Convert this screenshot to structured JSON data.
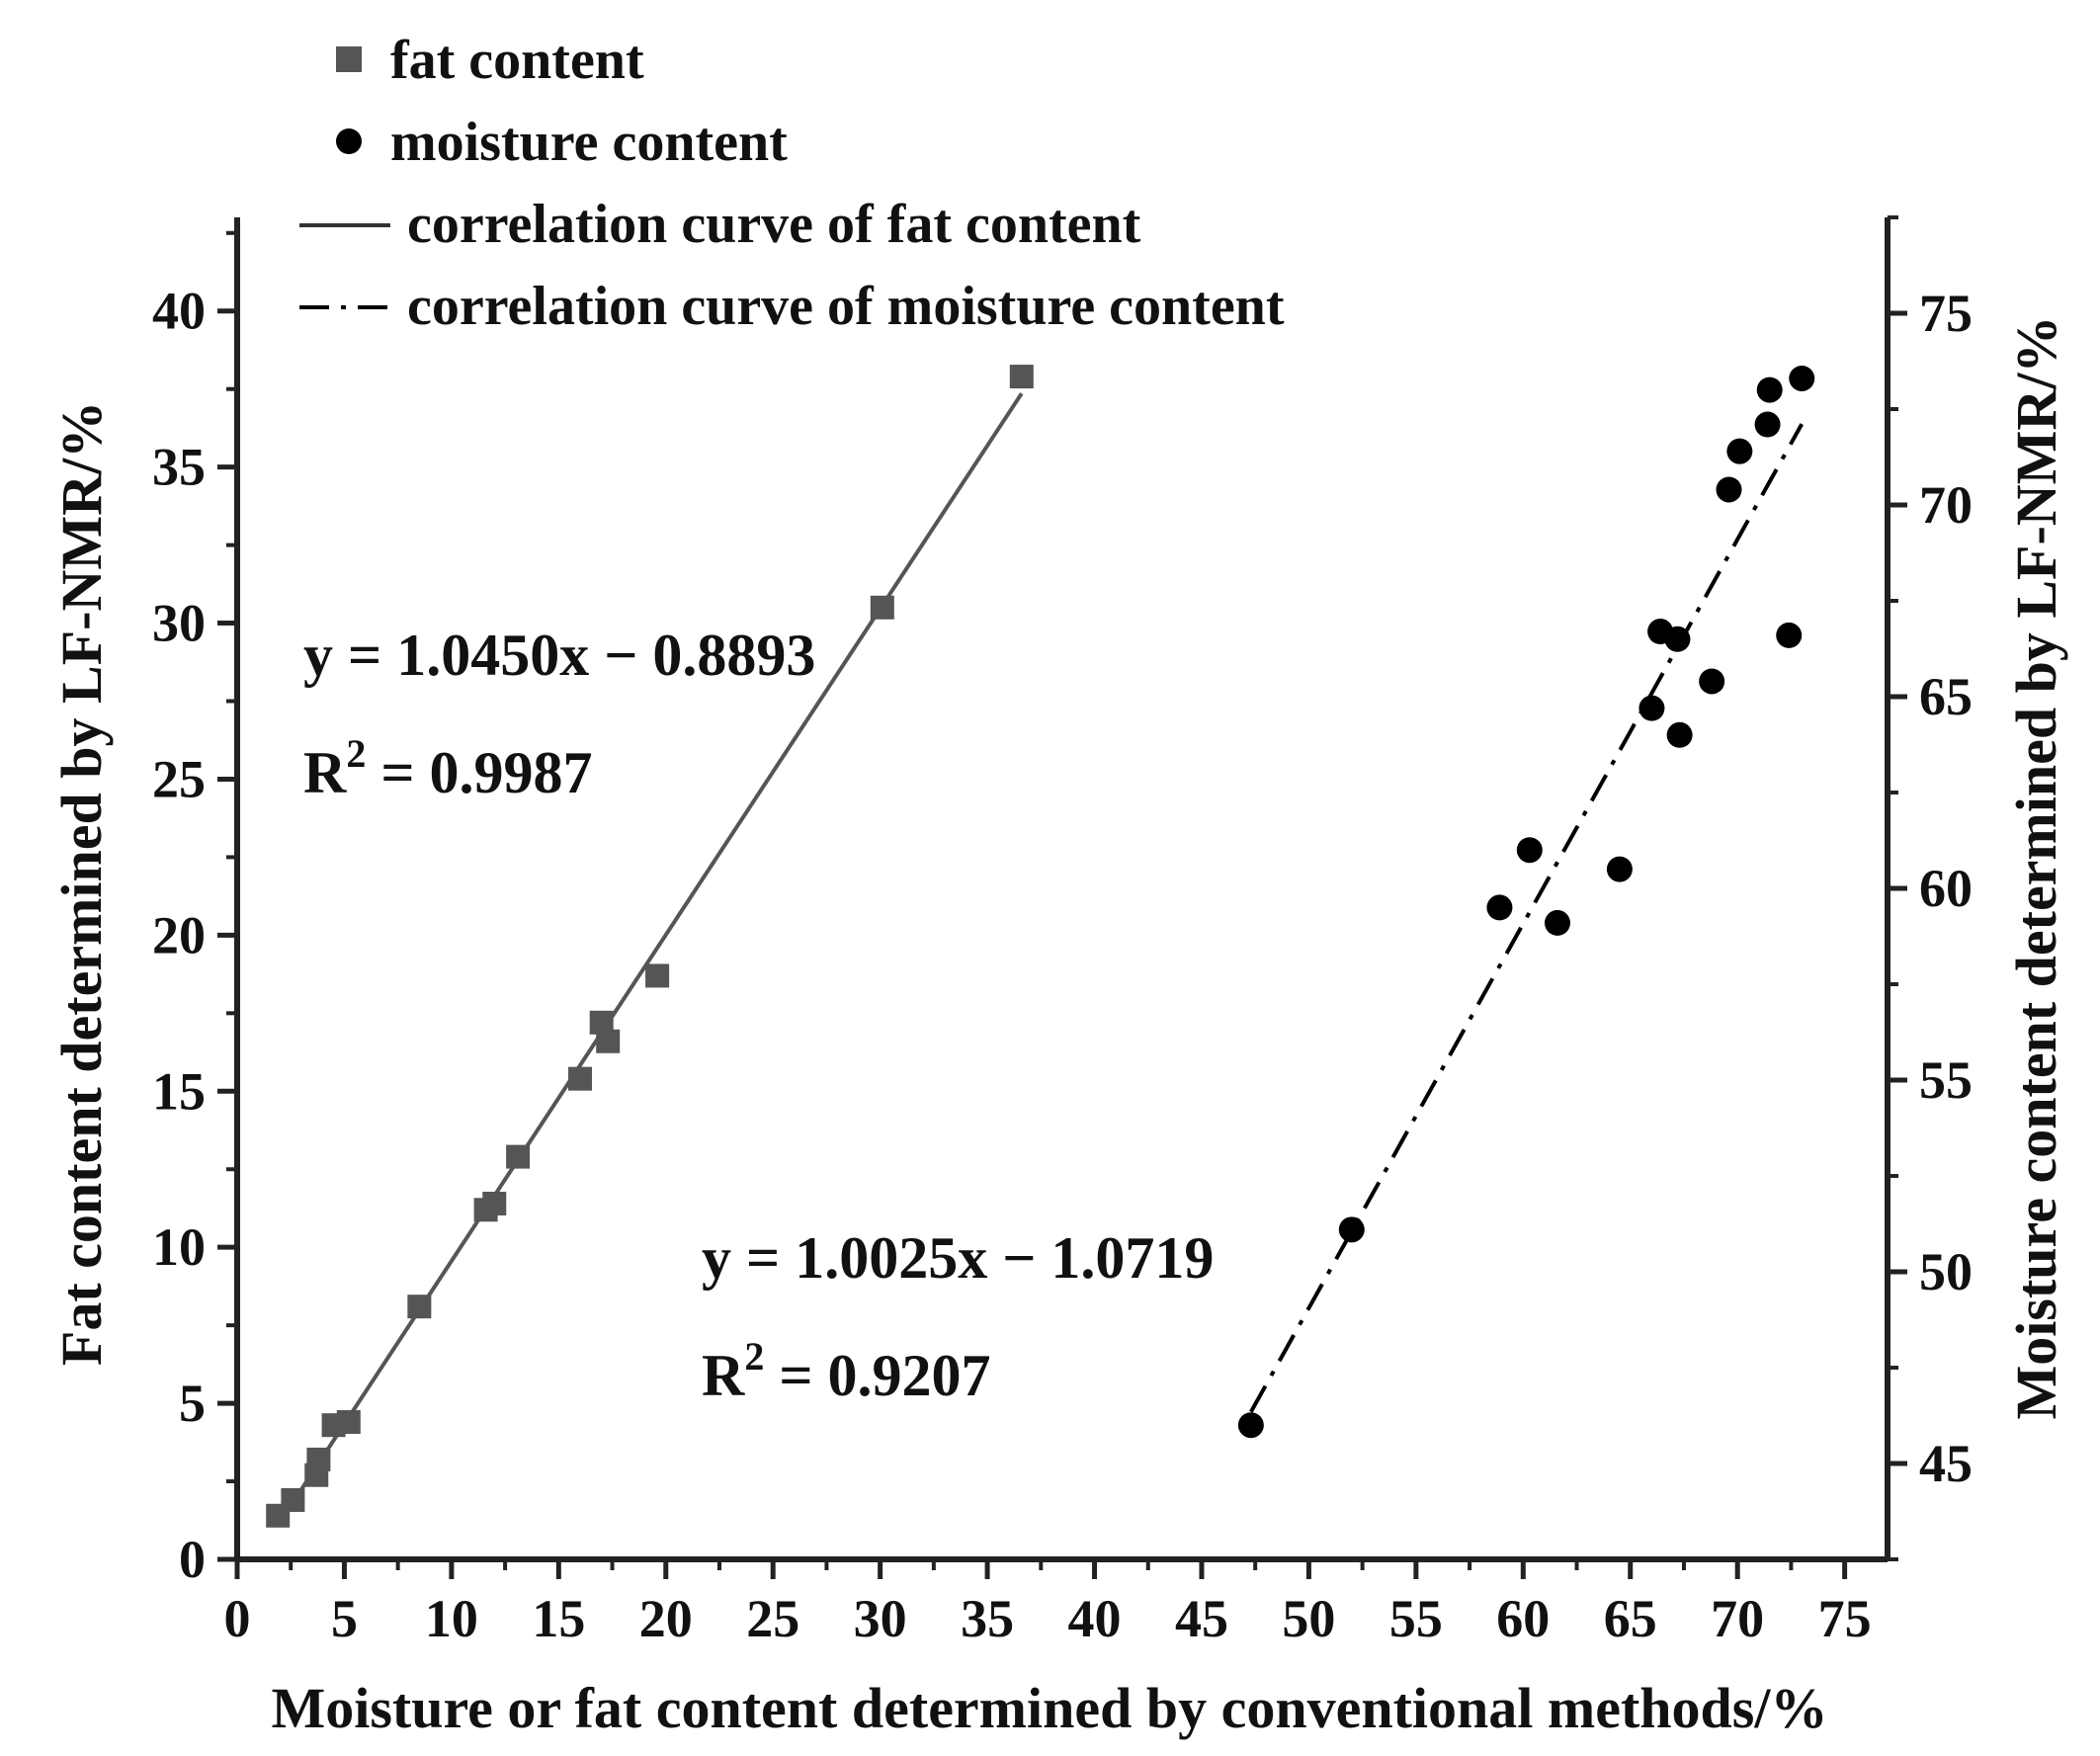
{
  "chart_data": {
    "type": "scatter",
    "xlabel": "Moisture or fat content determined by conventional methods/%",
    "ylabel_left": "Fat content determined by LF-NMR/%",
    "ylabel_right": "Moisture content determined by LF-NMR/%",
    "xlim": [
      0,
      77
    ],
    "ylim_left": [
      0,
      43
    ],
    "ylim_right": [
      42.5,
      77.5
    ],
    "x_ticks": [
      0,
      5,
      10,
      15,
      20,
      25,
      30,
      35,
      40,
      45,
      50,
      55,
      60,
      65,
      70,
      75
    ],
    "y_left_ticks": [
      0,
      5,
      10,
      15,
      20,
      25,
      30,
      35,
      40
    ],
    "y_right_ticks": [
      45,
      50,
      55,
      60,
      65,
      70,
      75
    ],
    "grid": false,
    "legend_position": "top-left",
    "legend": [
      {
        "label": "fat content",
        "marker": "square"
      },
      {
        "label": "moisture content",
        "marker": "circle"
      },
      {
        "label": "correlation curve of fat content",
        "line": "solid"
      },
      {
        "label": "correlation curve of moisture content",
        "line": "dash-dot"
      }
    ],
    "series": [
      {
        "name": "fat content",
        "axis": "left",
        "marker": "square",
        "color": "#555555",
        "points": [
          [
            1.9,
            1.4
          ],
          [
            2.6,
            1.9
          ],
          [
            3.7,
            2.7
          ],
          [
            3.8,
            3.2
          ],
          [
            4.5,
            4.3
          ],
          [
            5.2,
            4.4
          ],
          [
            8.5,
            8.1
          ],
          [
            11.6,
            11.2
          ],
          [
            12.0,
            11.4
          ],
          [
            13.1,
            12.9
          ],
          [
            16.0,
            15.4
          ],
          [
            17.0,
            17.2
          ],
          [
            17.3,
            16.6
          ],
          [
            19.6,
            18.7
          ],
          [
            30.1,
            30.5
          ],
          [
            36.6,
            37.9
          ]
        ]
      },
      {
        "name": "moisture content",
        "axis": "right",
        "marker": "circle",
        "color": "#000000",
        "points": [
          [
            47.3,
            46.0
          ],
          [
            52.0,
            51.1
          ],
          [
            58.9,
            59.5
          ],
          [
            60.3,
            61.0
          ],
          [
            61.6,
            59.1
          ],
          [
            64.5,
            60.5
          ],
          [
            66.0,
            64.7
          ],
          [
            66.4,
            66.7
          ],
          [
            67.2,
            66.5
          ],
          [
            67.3,
            64.0
          ],
          [
            68.8,
            65.4
          ],
          [
            69.6,
            70.4
          ],
          [
            70.1,
            71.4
          ],
          [
            71.4,
            72.1
          ],
          [
            71.5,
            73.0
          ],
          [
            72.4,
            66.6
          ],
          [
            73.0,
            73.3
          ]
        ]
      }
    ],
    "fits": [
      {
        "name": "correlation curve of fat content",
        "axis": "left",
        "slope": 1.045,
        "intercept": -0.8893,
        "x_range": [
          1.9,
          36.6
        ],
        "style": "solid",
        "color": "#555555"
      },
      {
        "name": "correlation curve of moisture content",
        "axis": "right",
        "slope": 1.0025,
        "intercept": -1.0719,
        "x_range": [
          47.3,
          73.0
        ],
        "style": "dash-dot",
        "color": "#000000"
      }
    ],
    "annotations": [
      {
        "equation": "y = 1.0450x − 0.8893",
        "r2_label": "R",
        "r2_sup": "2",
        "r2_value": " = 0.9987"
      },
      {
        "equation": "y = 1.0025x − 1.0719",
        "r2_label": "R",
        "r2_sup": "2",
        "r2_value": " = 0.9207"
      }
    ]
  }
}
